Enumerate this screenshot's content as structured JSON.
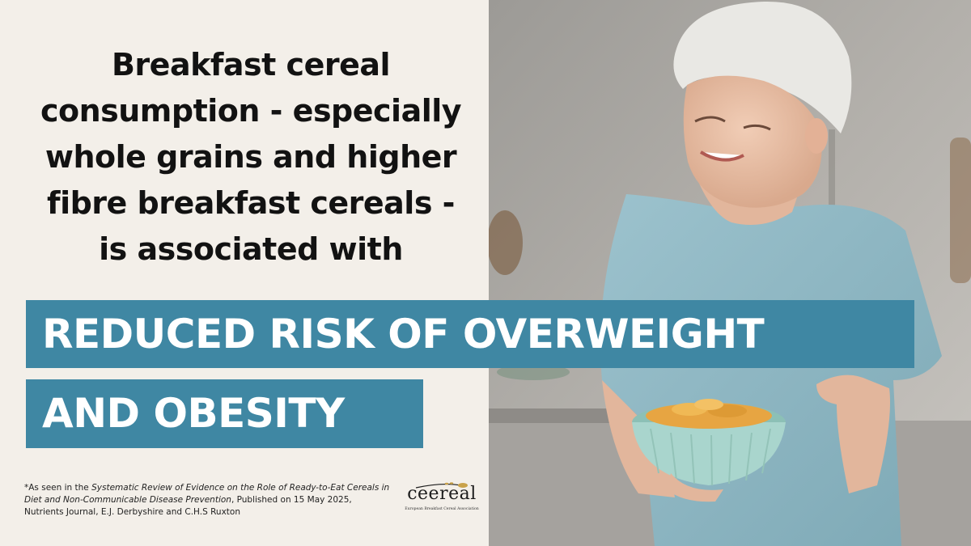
{
  "headline": {
    "lines": [
      "Breakfast cereal",
      "consumption - especially",
      "whole grains and higher",
      "fibre breakfast cereals -",
      "is associated with"
    ]
  },
  "banner": {
    "line1": "REDUCED RISK OF OVERWEIGHT",
    "line2": "AND OBESITY"
  },
  "footnote": {
    "prefix": "*As seen in the ",
    "title": "Systematic Review of Evidence on the Role of Ready-to-Eat Cereals in Diet and Non-Communicable Disease Prevention",
    "suffix": ", Published on 15 May 2025, Nutrients Journal, E.J. Derbyshire and C.H.S Ruxton"
  },
  "logo": {
    "wordmark": "ceereal",
    "tagline": "European Breakfast Cereal Association"
  },
  "colors": {
    "banner": "#3f87a3",
    "background": "#f3efe9",
    "shirt": "#8fb7c4",
    "bowl": "#a9d5cd"
  },
  "photo": {
    "subject": "woman-holding-cereal-bowl"
  }
}
